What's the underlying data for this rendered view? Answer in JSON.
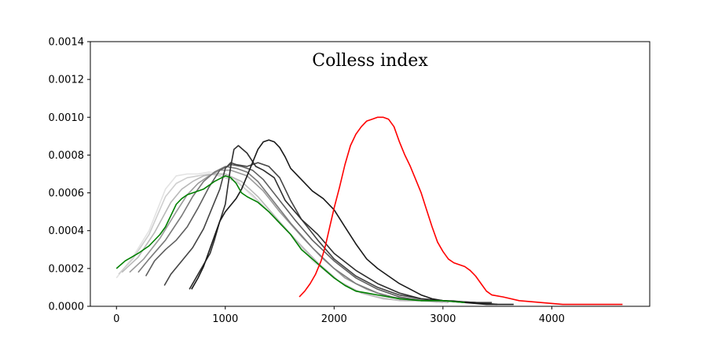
{
  "chart_data": {
    "type": "line",
    "title": "Colless  index",
    "xlabel": "",
    "ylabel": "",
    "xlim": [
      -240,
      4900
    ],
    "ylim": [
      0,
      0.0014
    ],
    "xticks": [
      {
        "value": 0,
        "label": "0"
      },
      {
        "value": 1000,
        "label": "1000"
      },
      {
        "value": 2000,
        "label": "2000"
      },
      {
        "value": 3000,
        "label": "3000"
      },
      {
        "value": 4000,
        "label": "4000"
      }
    ],
    "yticks": [
      {
        "value": 0,
        "label": "0.0000"
      },
      {
        "value": 0.0002,
        "label": "0.0002"
      },
      {
        "value": 0.0004,
        "label": "0.0004"
      },
      {
        "value": 0.0006,
        "label": "0.0006"
      },
      {
        "value": 0.0008,
        "label": "0.0008"
      },
      {
        "value": 0.001,
        "label": "0.0010"
      },
      {
        "value": 0.0012,
        "label": "0.0012"
      },
      {
        "value": 0.0014,
        "label": "0.0014"
      }
    ],
    "grid": false,
    "legend": "none",
    "series": [
      {
        "color": "#e3e3e3",
        "points": [
          [
            0,
            0.00015
          ],
          [
            150,
            0.00026
          ],
          [
            300,
            0.0004
          ],
          [
            450,
            0.00062
          ],
          [
            550,
            0.00069
          ],
          [
            650,
            0.0007
          ],
          [
            750,
            0.0007
          ],
          [
            850,
            0.00071
          ],
          [
            950,
            0.0007
          ],
          [
            1100,
            0.00067
          ],
          [
            1250,
            0.00058
          ],
          [
            1400,
            0.0005
          ],
          [
            1600,
            0.00038
          ],
          [
            1800,
            0.00024
          ],
          [
            2000,
            0.00015
          ],
          [
            2200,
            8e-05
          ],
          [
            2400,
            5e-05
          ],
          [
            2600,
            3e-05
          ],
          [
            2800,
            3e-05
          ],
          [
            2950,
            2e-05
          ]
        ]
      },
      {
        "color": "#cfcfcf",
        "points": [
          [
            20,
            0.00017
          ],
          [
            150,
            0.00025
          ],
          [
            300,
            0.00038
          ],
          [
            450,
            0.00058
          ],
          [
            550,
            0.00065
          ],
          [
            650,
            0.00068
          ],
          [
            750,
            0.00069
          ],
          [
            850,
            0.0007
          ],
          [
            950,
            0.00069
          ],
          [
            1100,
            0.00066
          ],
          [
            1250,
            0.00059
          ],
          [
            1400,
            0.0005
          ],
          [
            1600,
            0.00038
          ],
          [
            1800,
            0.00025
          ],
          [
            2000,
            0.00015
          ],
          [
            2200,
            8e-05
          ],
          [
            2400,
            5e-05
          ],
          [
            2600,
            3e-05
          ],
          [
            2800,
            3e-05
          ],
          [
            3000,
            2e-05
          ]
        ]
      },
      {
        "color": "#b8b8b8",
        "points": [
          [
            50,
            0.00018
          ],
          [
            200,
            0.00026
          ],
          [
            350,
            0.00039
          ],
          [
            500,
            0.00055
          ],
          [
            600,
            0.00062
          ],
          [
            700,
            0.00066
          ],
          [
            800,
            0.00069
          ],
          [
            900,
            0.0007
          ],
          [
            1000,
            0.0007
          ],
          [
            1150,
            0.00066
          ],
          [
            1300,
            0.00058
          ],
          [
            1450,
            0.00048
          ],
          [
            1650,
            0.00035
          ],
          [
            1850,
            0.00023
          ],
          [
            2050,
            0.00013
          ],
          [
            2250,
            7e-05
          ],
          [
            2450,
            4e-05
          ],
          [
            2650,
            3e-05
          ],
          [
            2850,
            3e-05
          ],
          [
            3050,
            2e-05
          ]
        ]
      },
      {
        "color": "#999999",
        "points": [
          [
            120,
            0.00018
          ],
          [
            250,
            0.00025
          ],
          [
            400,
            0.00036
          ],
          [
            550,
            0.0005
          ],
          [
            650,
            0.00059
          ],
          [
            750,
            0.00065
          ],
          [
            850,
            0.00069
          ],
          [
            950,
            0.00072
          ],
          [
            1050,
            0.00072
          ],
          [
            1200,
            0.00069
          ],
          [
            1350,
            0.00061
          ],
          [
            1500,
            0.0005
          ],
          [
            1700,
            0.00037
          ],
          [
            1900,
            0.00025
          ],
          [
            2100,
            0.00015
          ],
          [
            2300,
            9e-05
          ],
          [
            2500,
            5e-05
          ],
          [
            2700,
            4e-05
          ],
          [
            2900,
            3e-05
          ],
          [
            3100,
            3e-05
          ],
          [
            3200,
            2e-05
          ]
        ]
      },
      {
        "color": "#7a7a7a",
        "points": [
          [
            200,
            0.00018
          ],
          [
            300,
            0.00025
          ],
          [
            450,
            0.00035
          ],
          [
            600,
            0.00048
          ],
          [
            700,
            0.00058
          ],
          [
            800,
            0.00066
          ],
          [
            900,
            0.00071
          ],
          [
            1000,
            0.00074
          ],
          [
            1100,
            0.00073
          ],
          [
            1200,
            0.00071
          ],
          [
            1300,
            0.00066
          ],
          [
            1450,
            0.00055
          ],
          [
            1600,
            0.00044
          ],
          [
            1800,
            0.00031
          ],
          [
            2000,
            0.0002
          ],
          [
            2200,
            0.00012
          ],
          [
            2400,
            7e-05
          ],
          [
            2600,
            4e-05
          ],
          [
            2800,
            3e-05
          ],
          [
            3000,
            3e-05
          ],
          [
            3250,
            2e-05
          ]
        ]
      },
      {
        "color": "#5e5e5e",
        "points": [
          [
            270,
            0.00016
          ],
          [
            350,
            0.00024
          ],
          [
            450,
            0.0003
          ],
          [
            550,
            0.00035
          ],
          [
            650,
            0.00042
          ],
          [
            750,
            0.00052
          ],
          [
            850,
            0.00063
          ],
          [
            950,
            0.00072
          ],
          [
            1050,
            0.00075
          ],
          [
            1150,
            0.00074
          ],
          [
            1250,
            0.00072
          ],
          [
            1350,
            0.00067
          ],
          [
            1500,
            0.00056
          ],
          [
            1650,
            0.00045
          ],
          [
            1800,
            0.00035
          ],
          [
            2000,
            0.00024
          ],
          [
            2200,
            0.00015
          ],
          [
            2400,
            9e-05
          ],
          [
            2600,
            5e-05
          ],
          [
            2800,
            3e-05
          ],
          [
            3000,
            3e-05
          ],
          [
            3300,
            2e-05
          ]
        ]
      },
      {
        "color": "#444444",
        "points": [
          [
            440,
            0.00011
          ],
          [
            500,
            0.00017
          ],
          [
            600,
            0.00024
          ],
          [
            700,
            0.00031
          ],
          [
            800,
            0.00041
          ],
          [
            900,
            0.00055
          ],
          [
            950,
            0.00062
          ],
          [
            1000,
            0.00073
          ],
          [
            1050,
            0.00076
          ],
          [
            1100,
            0.00075
          ],
          [
            1200,
            0.00074
          ],
          [
            1300,
            0.00076
          ],
          [
            1400,
            0.00074
          ],
          [
            1500,
            0.00068
          ],
          [
            1600,
            0.00056
          ],
          [
            1700,
            0.00046
          ],
          [
            1850,
            0.00035
          ],
          [
            2000,
            0.00025
          ],
          [
            2200,
            0.00016
          ],
          [
            2400,
            0.0001
          ],
          [
            2600,
            6e-05
          ],
          [
            2800,
            4e-05
          ],
          [
            3000,
            3e-05
          ],
          [
            3250,
            2e-05
          ],
          [
            3450,
            2e-05
          ]
        ]
      },
      {
        "color": "#2e2e2e",
        "points": [
          [
            670,
            9e-05
          ],
          [
            720,
            0.00014
          ],
          [
            800,
            0.00022
          ],
          [
            860,
            0.00028
          ],
          [
            900,
            0.00035
          ],
          [
            950,
            0.00045
          ],
          [
            1000,
            0.00054
          ],
          [
            1020,
            0.00062
          ],
          [
            1050,
            0.00074
          ],
          [
            1080,
            0.00083
          ],
          [
            1120,
            0.00085
          ],
          [
            1200,
            0.00081
          ],
          [
            1280,
            0.00074
          ],
          [
            1350,
            0.00072
          ],
          [
            1450,
            0.00068
          ],
          [
            1550,
            0.00056
          ],
          [
            1700,
            0.00046
          ],
          [
            1850,
            0.00038
          ],
          [
            2000,
            0.00028
          ],
          [
            2200,
            0.00019
          ],
          [
            2400,
            0.00012
          ],
          [
            2600,
            7e-05
          ],
          [
            2800,
            4e-05
          ],
          [
            3000,
            3e-05
          ],
          [
            3300,
            2e-05
          ],
          [
            3500,
            1e-05
          ]
        ]
      },
      {
        "color": "#1a1a1a",
        "points": [
          [
            690,
            9e-05
          ],
          [
            750,
            0.00015
          ],
          [
            800,
            0.00021
          ],
          [
            850,
            0.00029
          ],
          [
            900,
            0.00037
          ],
          [
            950,
            0.00045
          ],
          [
            1000,
            0.0005
          ],
          [
            1100,
            0.00057
          ],
          [
            1150,
            0.00062
          ],
          [
            1200,
            0.00069
          ],
          [
            1250,
            0.00076
          ],
          [
            1300,
            0.00083
          ],
          [
            1350,
            0.00087
          ],
          [
            1400,
            0.00088
          ],
          [
            1450,
            0.00087
          ],
          [
            1500,
            0.00084
          ],
          [
            1550,
            0.00079
          ],
          [
            1600,
            0.00073
          ],
          [
            1700,
            0.00067
          ],
          [
            1800,
            0.00061
          ],
          [
            1900,
            0.00057
          ],
          [
            2000,
            0.00051
          ],
          [
            2100,
            0.00042
          ],
          [
            2200,
            0.00033
          ],
          [
            2300,
            0.00025
          ],
          [
            2400,
            0.0002
          ],
          [
            2500,
            0.00016
          ],
          [
            2600,
            0.00012
          ],
          [
            2700,
            9e-05
          ],
          [
            2800,
            6e-05
          ],
          [
            2900,
            4e-05
          ],
          [
            3000,
            3e-05
          ],
          [
            3200,
            2e-05
          ],
          [
            3400,
            1e-05
          ],
          [
            3650,
            1e-05
          ]
        ]
      },
      {
        "color": "#008000",
        "points": [
          [
            0,
            0.0002
          ],
          [
            80,
            0.00024
          ],
          [
            200,
            0.00028
          ],
          [
            300,
            0.00032
          ],
          [
            400,
            0.00038
          ],
          [
            450,
            0.00042
          ],
          [
            500,
            0.00048
          ],
          [
            550,
            0.00054
          ],
          [
            600,
            0.00057
          ],
          [
            650,
            0.00059
          ],
          [
            700,
            0.0006
          ],
          [
            800,
            0.00062
          ],
          [
            900,
            0.00066
          ],
          [
            1000,
            0.00069
          ],
          [
            1050,
            0.00068
          ],
          [
            1100,
            0.00065
          ],
          [
            1150,
            0.0006
          ],
          [
            1200,
            0.00058
          ],
          [
            1300,
            0.00055
          ],
          [
            1400,
            0.0005
          ],
          [
            1500,
            0.00044
          ],
          [
            1600,
            0.00038
          ],
          [
            1700,
            0.0003
          ],
          [
            1800,
            0.00025
          ],
          [
            1900,
            0.0002
          ],
          [
            2000,
            0.00015
          ],
          [
            2100,
            0.00011
          ],
          [
            2200,
            8e-05
          ],
          [
            2300,
            7e-05
          ],
          [
            2400,
            6e-05
          ],
          [
            2500,
            5e-05
          ],
          [
            2600,
            4e-05
          ],
          [
            2800,
            3e-05
          ],
          [
            3000,
            3e-05
          ],
          [
            3200,
            2e-05
          ]
        ]
      },
      {
        "color": "#ff0000",
        "points": [
          [
            1680,
            5e-05
          ],
          [
            1730,
            8e-05
          ],
          [
            1780,
            0.00012
          ],
          [
            1830,
            0.00017
          ],
          [
            1880,
            0.00024
          ],
          [
            1920,
            0.00032
          ],
          [
            1960,
            0.00042
          ],
          [
            2000,
            0.00052
          ],
          [
            2050,
            0.00063
          ],
          [
            2100,
            0.00075
          ],
          [
            2150,
            0.00085
          ],
          [
            2200,
            0.00091
          ],
          [
            2250,
            0.00095
          ],
          [
            2300,
            0.00098
          ],
          [
            2350,
            0.00099
          ],
          [
            2400,
            0.001
          ],
          [
            2450,
            0.001
          ],
          [
            2500,
            0.00099
          ],
          [
            2550,
            0.00095
          ],
          [
            2600,
            0.00087
          ],
          [
            2650,
            0.0008
          ],
          [
            2700,
            0.00074
          ],
          [
            2750,
            0.00067
          ],
          [
            2800,
            0.0006
          ],
          [
            2850,
            0.00051
          ],
          [
            2900,
            0.00042
          ],
          [
            2950,
            0.00034
          ],
          [
            3000,
            0.00029
          ],
          [
            3050,
            0.00025
          ],
          [
            3100,
            0.00023
          ],
          [
            3150,
            0.00022
          ],
          [
            3200,
            0.00021
          ],
          [
            3250,
            0.00019
          ],
          [
            3300,
            0.00016
          ],
          [
            3350,
            0.00012
          ],
          [
            3400,
            8e-05
          ],
          [
            3450,
            6e-05
          ],
          [
            3550,
            5e-05
          ],
          [
            3700,
            3e-05
          ],
          [
            3900,
            2e-05
          ],
          [
            4100,
            1e-05
          ],
          [
            4300,
            1e-05
          ],
          [
            4500,
            1e-05
          ],
          [
            4650,
            1e-05
          ]
        ]
      }
    ]
  }
}
